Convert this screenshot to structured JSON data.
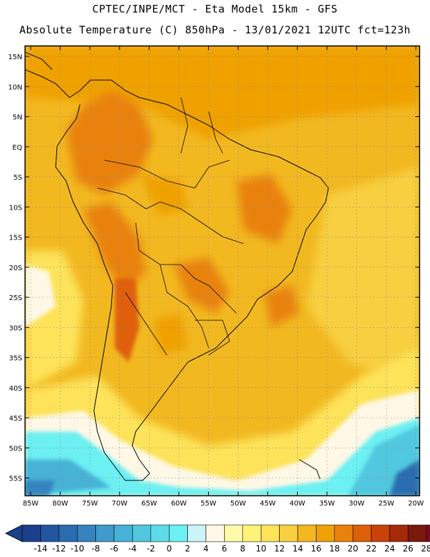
{
  "header": {
    "line1": "CPTEC/INPE/MCT -  Eta Model 15km - GFS",
    "line2": "Absolute Temperature (C) 850hPa - 13/01/2021 12UTC fct=123h"
  },
  "map": {
    "lat_labels": [
      "15N",
      "10N",
      "5N",
      "EQ",
      "5S",
      "10S",
      "15S",
      "20S",
      "25S",
      "30S",
      "35S",
      "40S",
      "45S",
      "50S",
      "55S"
    ],
    "lon_labels": [
      "85W",
      "80W",
      "75W",
      "70W",
      "65W",
      "60W",
      "55W",
      "50W",
      "45W",
      "40W",
      "35W",
      "30W",
      "25W",
      "20W"
    ],
    "gridlines": "dotted"
  },
  "colorbar": {
    "ticks": [
      "-14",
      "-12",
      "-10",
      "-8",
      "-6",
      "-4",
      "-2",
      "0",
      "2",
      "4",
      "6",
      "8",
      "10",
      "12",
      "14",
      "16",
      "18",
      "20",
      "22",
      "24",
      "26",
      "28"
    ],
    "colors": [
      "#1b3f8a",
      "#2356a0",
      "#2b6cb0",
      "#3584bf",
      "#3e9bcc",
      "#47b2d6",
      "#51c8df",
      "#5edbe8",
      "#6cf0f2",
      "#ccf3f8",
      "#fff8e6",
      "#fffaa8",
      "#fff27a",
      "#fde35a",
      "#f7cf40",
      "#f2b820",
      "#efa106",
      "#e9820c",
      "#df5f0b",
      "#c94208",
      "#a52a08",
      "#7a1a0c",
      "#7a0a2a"
    ],
    "low_arrow_color": "#1b3f8a",
    "high_arrow_color": "#7a0a2a"
  }
}
